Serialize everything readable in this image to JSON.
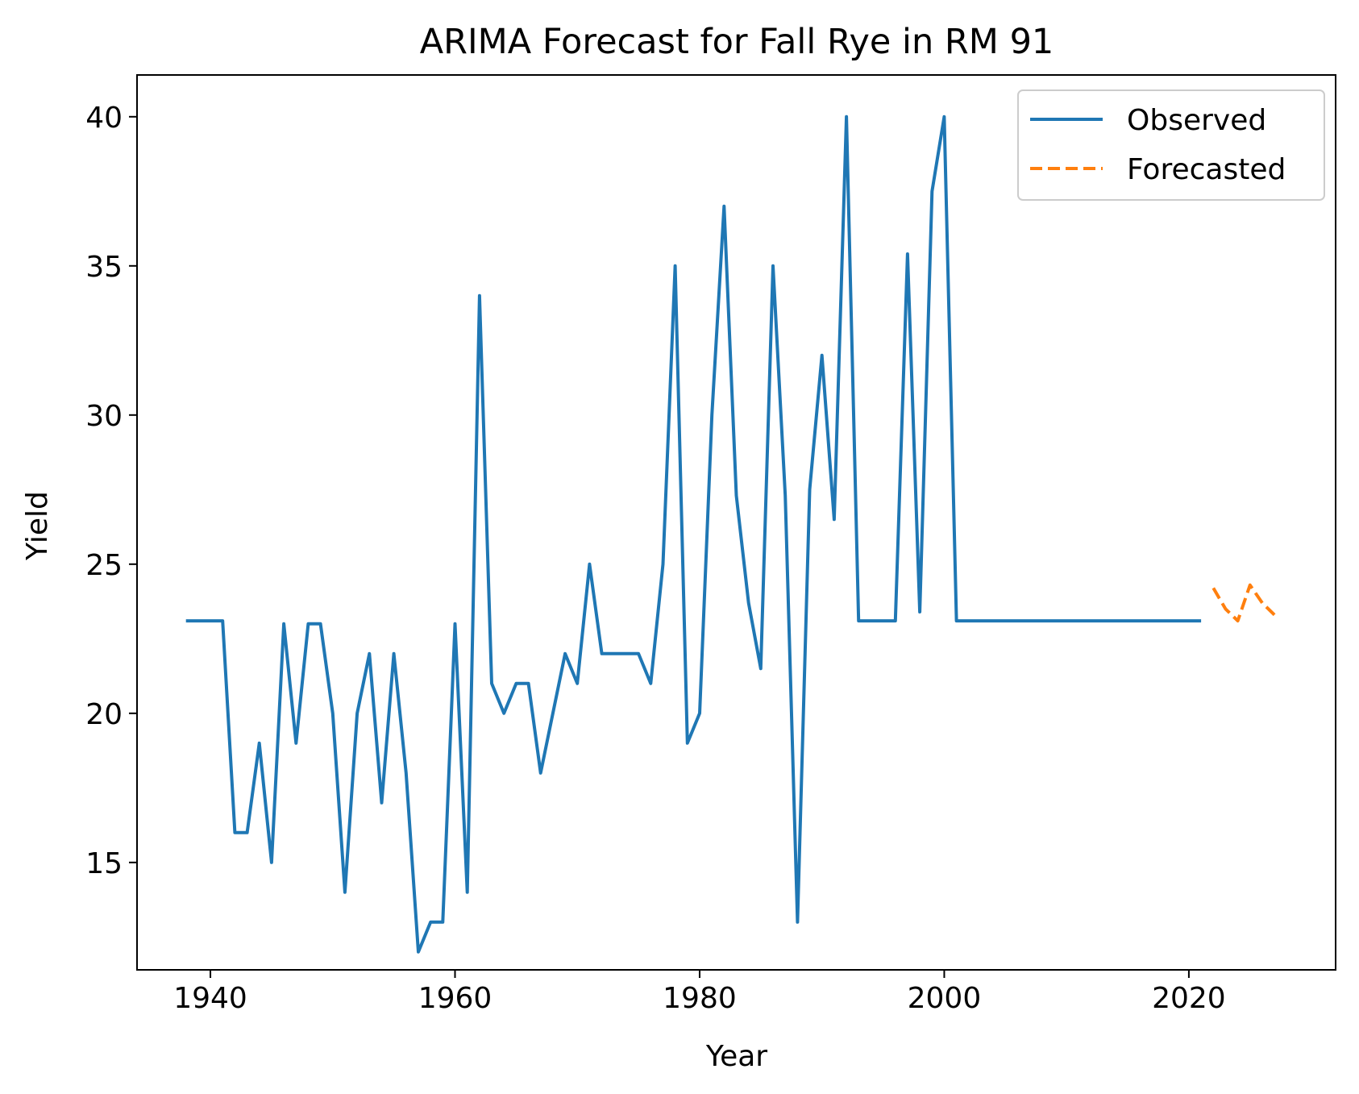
{
  "chart_data": {
    "type": "line",
    "title": "ARIMA Forecast for Fall Rye in RM 91",
    "xlabel": "Year",
    "ylabel": "Yield",
    "xlim": [
      1934,
      2032
    ],
    "ylim": [
      11.4,
      41.4
    ],
    "x_ticks": [
      1940,
      1960,
      1980,
      2000,
      2020
    ],
    "y_ticks": [
      15,
      20,
      25,
      30,
      35,
      40
    ],
    "grid": false,
    "legend": {
      "position": "upper right"
    },
    "series": [
      {
        "name": "Observed",
        "color": "#1f77b4",
        "style": "solid",
        "x": [
          1938,
          1939,
          1940,
          1941,
          1942,
          1943,
          1944,
          1945,
          1946,
          1947,
          1948,
          1949,
          1950,
          1951,
          1952,
          1953,
          1954,
          1955,
          1956,
          1957,
          1958,
          1959,
          1960,
          1961,
          1962,
          1963,
          1964,
          1965,
          1966,
          1967,
          1968,
          1969,
          1970,
          1971,
          1972,
          1973,
          1974,
          1975,
          1976,
          1977,
          1978,
          1979,
          1980,
          1981,
          1982,
          1983,
          1984,
          1985,
          1986,
          1987,
          1988,
          1989,
          1990,
          1991,
          1992,
          1993,
          1994,
          1995,
          1996,
          1997,
          1998,
          1999,
          2000,
          2001,
          2002,
          2003,
          2004,
          2005,
          2006,
          2007,
          2008,
          2009,
          2010,
          2011,
          2012,
          2013,
          2014,
          2015,
          2016,
          2017,
          2018,
          2019,
          2020,
          2021
        ],
        "values": [
          23.1,
          23.1,
          23.1,
          23.1,
          16,
          16,
          19,
          15,
          23,
          19,
          23,
          23,
          20,
          14,
          20,
          22,
          17,
          22,
          18,
          12,
          13,
          13,
          23,
          14,
          34,
          21,
          20,
          21,
          21,
          18,
          20,
          22,
          21,
          25,
          22,
          22,
          22,
          22,
          21,
          25,
          35,
          19,
          20,
          30,
          37,
          27.3,
          23.7,
          21.5,
          35,
          27.3,
          13,
          27.5,
          32,
          26.5,
          40,
          23.1,
          23.1,
          23.1,
          23.1,
          35.4,
          23.4,
          37.5,
          40,
          23.1,
          23.1,
          23.1,
          23.1,
          23.1,
          23.1,
          23.1,
          23.1,
          23.1,
          23.1,
          23.1,
          23.1,
          23.1,
          23.1,
          23.1,
          23.1,
          23.1,
          23.1,
          23.1,
          23.1,
          23.1
        ]
      },
      {
        "name": "Forecasted",
        "color": "#ff7f0e",
        "style": "dashed",
        "x": [
          2022,
          2023,
          2024,
          2025,
          2026,
          2027
        ],
        "values": [
          24.2,
          23.5,
          23.1,
          24.3,
          23.7,
          23.3
        ]
      }
    ]
  }
}
